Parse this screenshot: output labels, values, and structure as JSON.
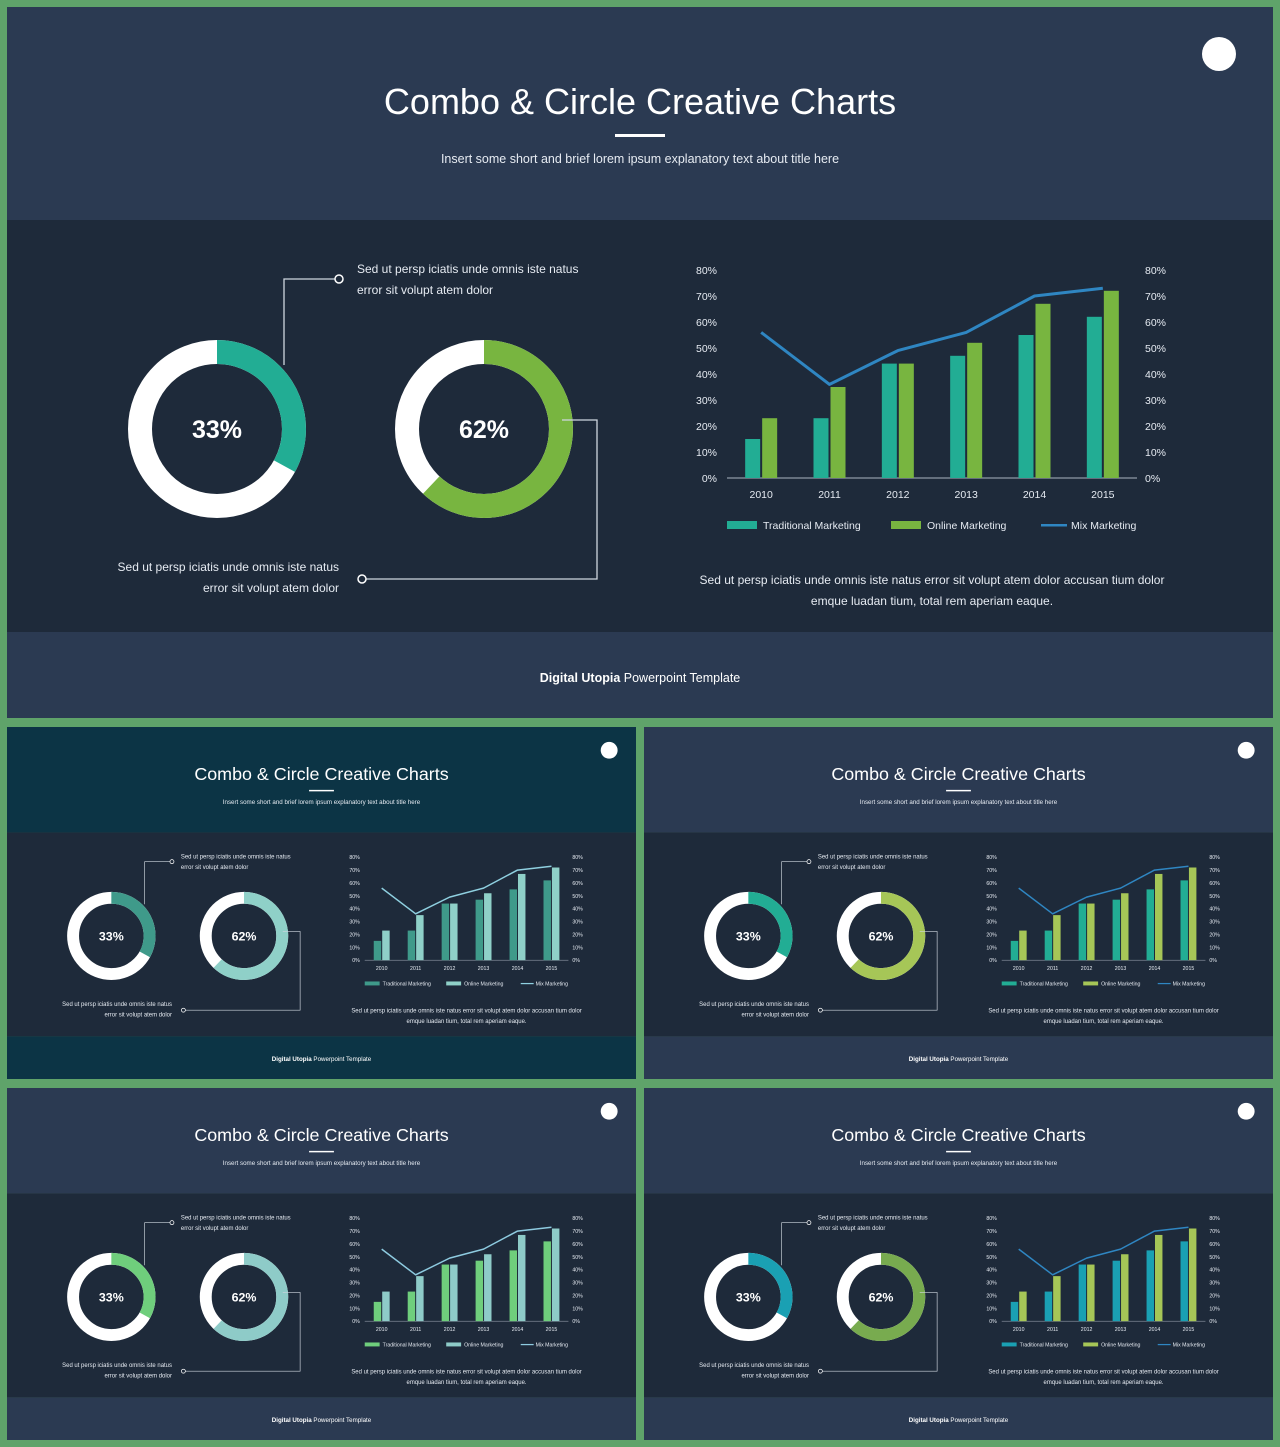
{
  "slide": {
    "title": "Combo & Circle Creative Charts",
    "subtitle": "Insert some short and brief lorem ipsum explanatory text about title here",
    "callout_top_line1": "Sed ut persp iciatis unde omnis iste natus",
    "callout_top_line2": "error sit volupt atem dolor",
    "callout_bottom_line1": "Sed ut persp iciatis unde omnis iste natus",
    "callout_bottom_line2": "error sit volupt atem dolor",
    "chart_caption_line1": "Sed ut persp iciatis unde omnis iste natus error sit volupt atem dolor accusan tium dolor",
    "chart_caption_line2": "emque luadan tium, total rem aperiam eaque.",
    "footer_bold": "Digital Utopia",
    "footer_rest": " Powerpoint Template"
  },
  "themes": [
    {
      "name": "main",
      "top": "#2b3a52",
      "mid": "#1e2a3a",
      "donut1": "#22ad94",
      "donut2": "#78b540",
      "bar1": "#22ad94",
      "bar2": "#78b540",
      "line": "#2f86c2"
    },
    {
      "name": "teal",
      "top": "#0c3445",
      "mid": "#1e2a3a",
      "donut1": "#3f9a8a",
      "donut2": "#8fd0c8",
      "bar1": "#3f9a8a",
      "bar2": "#8fd0c8",
      "line": "#8fd0e0"
    },
    {
      "name": "green-teal",
      "top": "#2b3a52",
      "mid": "#1e2a3a",
      "donut1": "#22ad94",
      "donut2": "#a6c657",
      "bar1": "#22ad94",
      "bar2": "#a6c657",
      "line": "#2f86c2"
    },
    {
      "name": "light-green",
      "top": "#2b3a52",
      "mid": "#1e2a3a",
      "donut1": "#6fce7c",
      "donut2": "#8ecbc8",
      "bar1": "#6fce7c",
      "bar2": "#8ecbc8",
      "line": "#8ecbe0"
    },
    {
      "name": "cyan-olive",
      "top": "#2b3a52",
      "mid": "#1e2a3a",
      "donut1": "#1aa0b3",
      "donut2": "#78ab4f",
      "bar1": "#1aa0b3",
      "bar2": "#a6c657",
      "line": "#2f86c2"
    }
  ],
  "chart_data": [
    {
      "type": "donut",
      "values": [
        33
      ],
      "labels": [
        "33%"
      ]
    },
    {
      "type": "donut",
      "values": [
        62
      ],
      "labels": [
        "62%"
      ]
    },
    {
      "type": "bar",
      "categories": [
        "2010",
        "2011",
        "2012",
        "2013",
        "2014",
        "2015"
      ],
      "series": [
        {
          "name": "Traditional Marketing",
          "type": "bar",
          "values": [
            15,
            23,
            44,
            47,
            55,
            62
          ]
        },
        {
          "name": "Online Marketing",
          "type": "bar",
          "values": [
            23,
            35,
            44,
            52,
            67,
            72
          ]
        },
        {
          "name": "Mix Marketing",
          "type": "line",
          "values": [
            56,
            36,
            49,
            56,
            70,
            73
          ]
        }
      ],
      "yticks": [
        "0%",
        "10%",
        "20%",
        "30%",
        "40%",
        "50%",
        "60%",
        "70%",
        "80%"
      ],
      "ylim": [
        0,
        80
      ],
      "grid": false,
      "legend": "bottom"
    }
  ]
}
